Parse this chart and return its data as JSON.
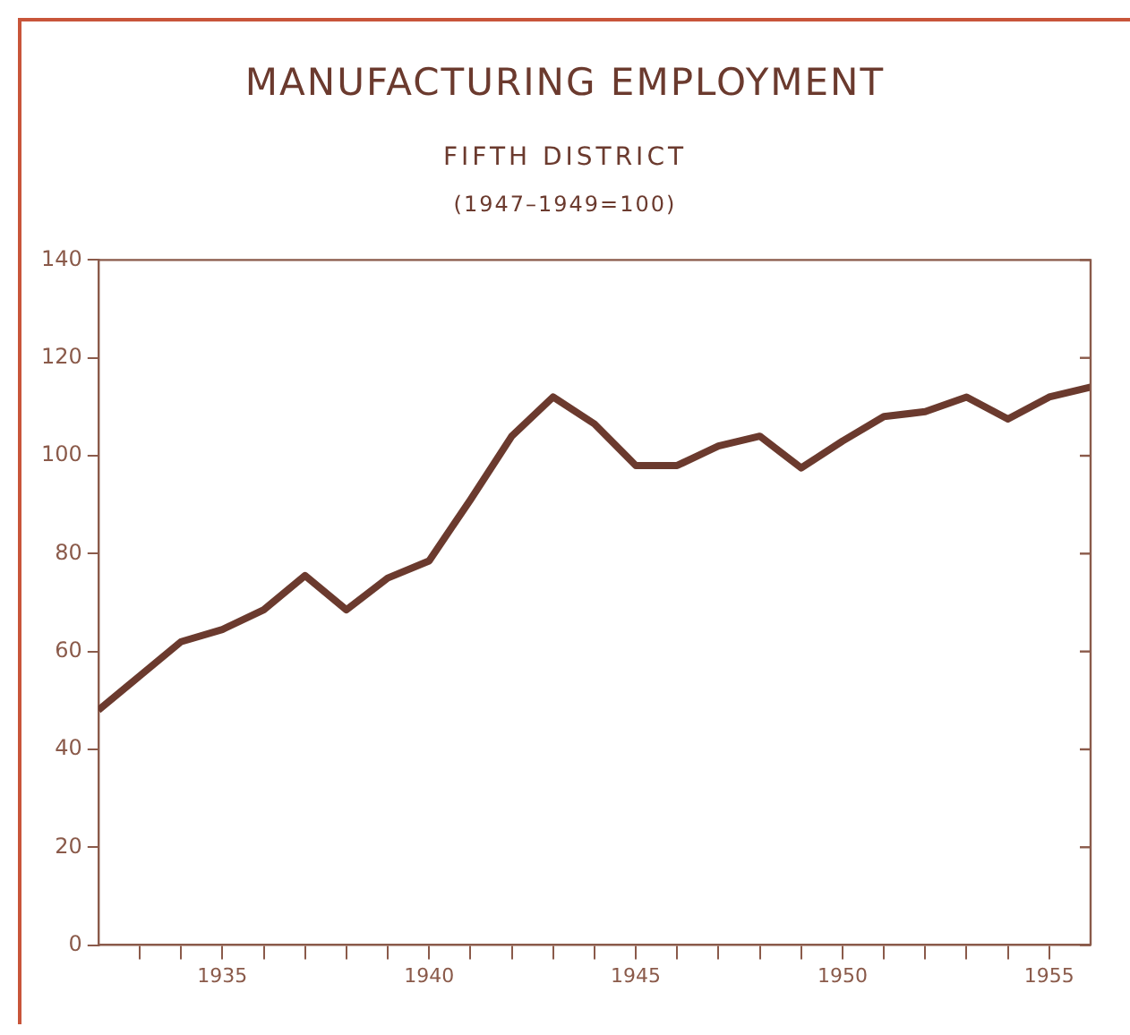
{
  "chart_data": {
    "type": "line",
    "title": "MANUFACTURING EMPLOYMENT",
    "subtitle": "FIFTH DISTRICT",
    "annotations": [
      "(1947–1949=100)"
    ],
    "x": [
      1932,
      1933,
      1934,
      1935,
      1936,
      1937,
      1938,
      1939,
      1940,
      1941,
      1942,
      1943,
      1944,
      1945,
      1946,
      1947,
      1948,
      1949,
      1950,
      1951,
      1952,
      1953,
      1954,
      1955,
      1956
    ],
    "series": [
      {
        "color": "#6b3a2e",
        "values": [
          48,
          55,
          62,
          64.5,
          68.5,
          75.5,
          68.5,
          75,
          78.5,
          91,
          104,
          112,
          106.5,
          98,
          98,
          102,
          104,
          97.5,
          103,
          108,
          109,
          112,
          107.5,
          112,
          114
        ]
      }
    ],
    "xlim": [
      1932,
      1956
    ],
    "xticks": [
      {
        "value": 1933,
        "label": null
      },
      {
        "value": 1934,
        "label": null
      },
      1935,
      {
        "value": 1936,
        "label": null
      },
      {
        "value": 1937,
        "label": null
      },
      {
        "value": 1938,
        "label": null
      },
      {
        "value": 1939,
        "label": null
      },
      1940,
      {
        "value": 1941,
        "label": null
      },
      {
        "value": 1942,
        "label": null
      },
      {
        "value": 1943,
        "label": null
      },
      {
        "value": 1944,
        "label": null
      },
      1945,
      {
        "value": 1946,
        "label": null
      },
      {
        "value": 1947,
        "label": null
      },
      {
        "value": 1948,
        "label": null
      },
      {
        "value": 1949,
        "label": null
      },
      1950,
      {
        "value": 1951,
        "label": null
      },
      {
        "value": 1952,
        "label": null
      },
      {
        "value": 1953,
        "label": null
      },
      {
        "value": 1954,
        "label": null
      },
      1955
    ],
    "ylim": [
      0,
      140
    ],
    "yticks": [
      0,
      20,
      40,
      60,
      80,
      100,
      120,
      140
    ],
    "grid": false,
    "legend": false,
    "marker": "none",
    "line_style": "solid"
  }
}
